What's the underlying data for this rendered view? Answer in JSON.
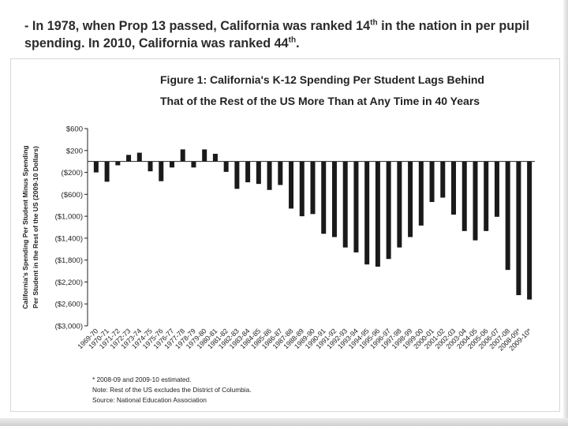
{
  "slide": {
    "heading_a": "- In 1978, when Prop 13 passed, California was ranked 14",
    "heading_sup1": "th",
    "heading_b": " in the nation in per pupil spending. In 2010, California was ranked 44",
    "heading_sup2": "th",
    "heading_c": "."
  },
  "chart_data": {
    "type": "bar",
    "title": [
      "Figure 1: California's K-12 Spending Per Student Lags Behind",
      "That of the Rest of the US More Than at Any Time in 40 Years"
    ],
    "ylabel": [
      "California's Spending Per Student Minus Spending",
      "Per Student in the Rest of the US (2009-10 Dollars)"
    ],
    "xlabel": "",
    "ylim": [
      -3000,
      600
    ],
    "yticks": [
      600,
      200,
      -200,
      -600,
      -1000,
      -1400,
      -1800,
      -2200,
      -2600,
      -3000
    ],
    "ytick_labels": [
      "$600",
      "$200",
      "($200)",
      "($600)",
      "($1,000)",
      "($1,400)",
      "($1,800)",
      "($2,200)",
      "($2,600)",
      "($3,000)"
    ],
    "categories": [
      "1969-70",
      "1970-71",
      "1971-72",
      "1972-73",
      "1973-74",
      "1974-75",
      "1975-76",
      "1976-77",
      "1977-78",
      "1978-79",
      "1979-80",
      "1980-81",
      "1981-82",
      "1982-83",
      "1983-84",
      "1984-85",
      "1985-86",
      "1986-87",
      "1987-88",
      "1988-89",
      "1989-90",
      "1990-91",
      "1991-92",
      "1992-93",
      "1993-94",
      "1994-95",
      "1995-96",
      "1996-97",
      "1997-98",
      "1998-99",
      "1999-00",
      "2000-01",
      "2001-02",
      "2002-03",
      "2003-04",
      "2004-05",
      "2005-06",
      "2006-07",
      "2007-08",
      "2008-09*",
      "2009-10*"
    ],
    "values": [
      -200,
      -370,
      -70,
      120,
      160,
      -180,
      -360,
      -110,
      220,
      -110,
      220,
      140,
      -190,
      -500,
      -380,
      -410,
      -520,
      -430,
      -860,
      -1000,
      -960,
      -1320,
      -1380,
      -1570,
      -1660,
      -1880,
      -1920,
      -1780,
      -1570,
      -1380,
      -1170,
      -740,
      -660,
      -970,
      -1270,
      -1440,
      -1270,
      -1010,
      -1980,
      -2440,
      -2520
    ],
    "grid": false,
    "legend": "none",
    "notes": [
      "* 2008-09 and 2009-10 estimated.",
      "Note: Rest of the US excludes the District of Columbia.",
      "Source: National Education Association"
    ]
  }
}
